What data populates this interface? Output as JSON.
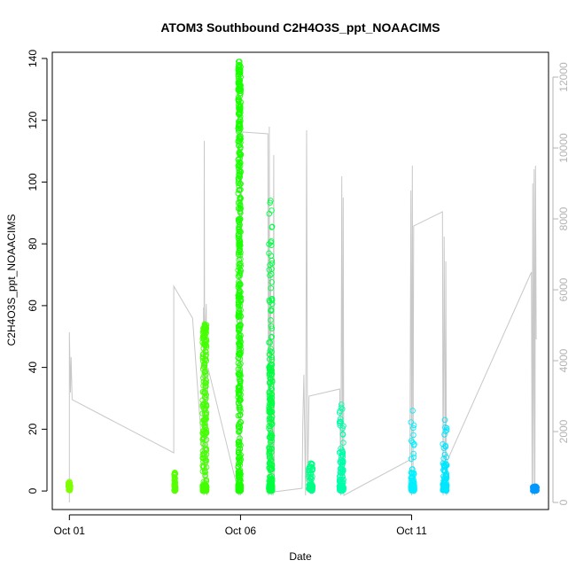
{
  "chart_data": {
    "type": "scatter",
    "title": "ATOM3 Southbound C2H4O3S_ppt_NOAACIMS",
    "xlabel": "Date",
    "ylabel": "C2H4O3S_ppt_NOAACIMS",
    "x_unit": "days since Oct 01 (0 = Oct 01)",
    "xlim": [
      -0.5,
      14.0
    ],
    "ylim": [
      -6,
      142
    ],
    "y_ticks": [
      0,
      20,
      40,
      60,
      80,
      100,
      120,
      140
    ],
    "x_ticks": [
      {
        "value": 0,
        "label": "Oct 01"
      },
      {
        "value": 5,
        "label": "Oct 06"
      },
      {
        "value": 10,
        "label": "Oct 11"
      }
    ],
    "secondary_axis": {
      "label": "",
      "ylim": [
        -200,
        12700
      ],
      "ticks": [
        0,
        2000,
        4000,
        6000,
        8000,
        10000,
        12000
      ],
      "color": "#b3b3b3",
      "line_color": "#c8c8c8"
    },
    "marker": "open-circle",
    "grid": false,
    "legend": "none",
    "scatter_clusters": [
      {
        "x": 0.0,
        "width": 0.06,
        "ymax": 3,
        "dense_top": 2,
        "color": "#7fff00"
      },
      {
        "x": 3.08,
        "width": 0.04,
        "ymax": 6,
        "dense_top": 5,
        "color": "#55ff00"
      },
      {
        "x": 3.95,
        "width": 0.12,
        "ymax": 54,
        "dense_top": 47,
        "color": "#44ff00"
      },
      {
        "x": 4.97,
        "width": 0.08,
        "ymax": 139,
        "dense_top": 120,
        "color": "#1aff00"
      },
      {
        "x": 5.88,
        "width": 0.1,
        "ymax": 94,
        "dense_top": 43,
        "color": "#00ff40"
      },
      {
        "x": 7.05,
        "width": 0.12,
        "ymax": 9,
        "dense_top": 7,
        "color": "#00ff88"
      },
      {
        "x": 7.95,
        "width": 0.12,
        "ymax": 28,
        "dense_top": 14,
        "color": "#00ffaa"
      },
      {
        "x": 10.03,
        "width": 0.1,
        "ymax": 26,
        "dense_top": 6,
        "color": "#00f0ff"
      },
      {
        "x": 10.97,
        "width": 0.12,
        "ymax": 23,
        "dense_top": 9,
        "color": "#00e6ff"
      },
      {
        "x": 13.6,
        "width": 0.12,
        "ymax": 1.5,
        "dense_top": 1,
        "color": "#0099ff"
      }
    ],
    "gray_line_vertices": [
      [
        0.0,
        0
      ],
      [
        0.0,
        4800
      ],
      [
        0.03,
        3100
      ],
      [
        0.05,
        4100
      ],
      [
        0.08,
        2900
      ],
      [
        3.05,
        1400
      ],
      [
        3.05,
        6100
      ],
      [
        3.6,
        5200
      ],
      [
        3.9,
        1200
      ],
      [
        3.92,
        5500
      ],
      [
        3.93,
        200
      ],
      [
        3.94,
        10200
      ],
      [
        3.96,
        300
      ],
      [
        3.97,
        4800
      ],
      [
        4.0,
        5600
      ],
      [
        4.02,
        200
      ],
      [
        4.05,
        3800
      ],
      [
        4.96,
        200
      ],
      [
        4.98,
        10500
      ],
      [
        5.0,
        200
      ],
      [
        5.03,
        9900
      ],
      [
        5.05,
        10400
      ],
      [
        5.08,
        10450
      ],
      [
        5.8,
        10400
      ],
      [
        5.82,
        200
      ],
      [
        5.84,
        10600
      ],
      [
        5.86,
        300
      ],
      [
        5.88,
        6800
      ],
      [
        5.9,
        200
      ],
      [
        5.92,
        2500
      ],
      [
        5.95,
        200
      ],
      [
        5.97,
        9800
      ],
      [
        5.99,
        300
      ],
      [
        6.8,
        400
      ],
      [
        6.82,
        2200
      ],
      [
        6.85,
        3600
      ],
      [
        6.9,
        200
      ],
      [
        6.93,
        10500
      ],
      [
        6.96,
        400
      ],
      [
        7.0,
        3000
      ],
      [
        7.9,
        3200
      ],
      [
        7.93,
        200
      ],
      [
        7.96,
        9200
      ],
      [
        7.98,
        300
      ],
      [
        8.0,
        8600
      ],
      [
        8.02,
        200
      ],
      [
        9.95,
        1200
      ],
      [
        9.98,
        8800
      ],
      [
        10.0,
        200
      ],
      [
        10.02,
        9500
      ],
      [
        10.04,
        300
      ],
      [
        10.06,
        7800
      ],
      [
        10.9,
        8200
      ],
      [
        10.92,
        200
      ],
      [
        10.95,
        7500
      ],
      [
        10.98,
        300
      ],
      [
        11.0,
        6800
      ],
      [
        11.02,
        200
      ],
      [
        11.05,
        1200
      ],
      [
        13.5,
        6500
      ],
      [
        13.52,
        200
      ],
      [
        13.54,
        9000
      ],
      [
        13.56,
        300
      ],
      [
        13.58,
        9400
      ],
      [
        13.6,
        200
      ],
      [
        13.62,
        9500
      ],
      [
        13.64,
        4600
      ]
    ]
  }
}
